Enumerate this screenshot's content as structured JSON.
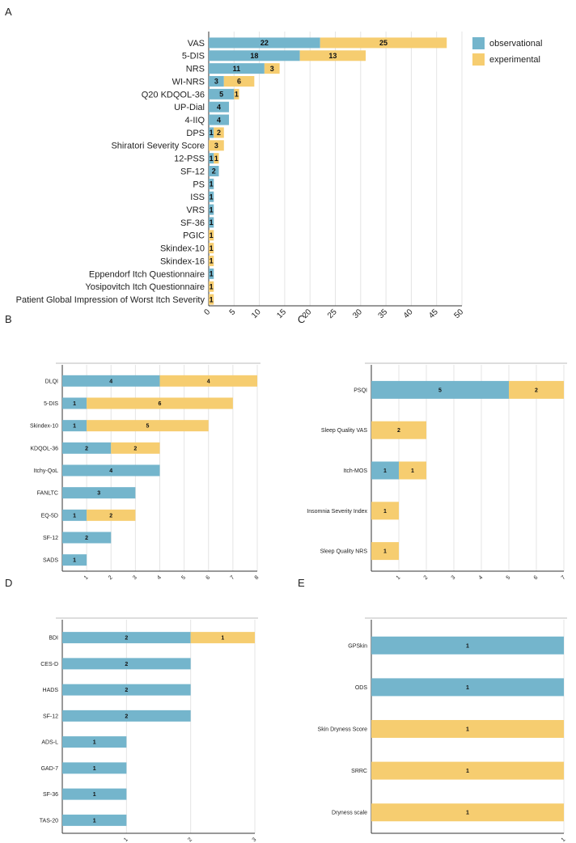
{
  "colors": {
    "observational": "#74b5cc",
    "experimental": "#f6cd70",
    "grid": "#e4e4e4",
    "axis": "#333333"
  },
  "chart_data": [
    {
      "panel": "A",
      "type": "bar",
      "orientation": "horizontal",
      "stacked": true,
      "categories": [
        "VAS",
        "5-DIS",
        "NRS",
        "WI-NRS",
        "Q20 KDQOL-36",
        "UP-Dial",
        "4-IIQ",
        "DPS",
        "Shiratori Severity Score",
        "12-PSS",
        "SF-12",
        "PS",
        "ISS",
        "VRS",
        "SF-36",
        "PGIC",
        "Skindex-10",
        "Skindex-16",
        "Eppendorf Itch Questionnaire",
        "Yosipovitch Itch Questionnaire",
        "Patient Global Impression of Worst Itch Severity"
      ],
      "series": [
        {
          "name": "observational",
          "values": [
            22,
            18,
            11,
            3,
            5,
            4,
            4,
            1,
            0,
            1,
            2,
            1,
            1,
            1,
            1,
            0,
            0,
            0,
            1,
            0,
            0
          ]
        },
        {
          "name": "experimental",
          "values": [
            25,
            13,
            3,
            6,
            1,
            0,
            0,
            2,
            3,
            1,
            0,
            0,
            0,
            0,
            0,
            1,
            1,
            1,
            0,
            1,
            1
          ]
        }
      ],
      "xlim": [
        0,
        50
      ],
      "xticks": [
        "0",
        "5",
        "10",
        "15",
        "20",
        "25",
        "30",
        "35",
        "40",
        "45",
        "50"
      ],
      "legend": {
        "position": "top-right",
        "entries": [
          "observational",
          "experimental"
        ]
      }
    },
    {
      "panel": "B",
      "type": "bar",
      "orientation": "horizontal",
      "stacked": true,
      "categories": [
        "DLQI",
        "5-DIS",
        "Skindex-10",
        "KDQOL-36",
        "Itchy-QoL",
        "FANLTC",
        "EQ-5D",
        "SF-12",
        "SADS"
      ],
      "series": [
        {
          "name": "observational",
          "values": [
            4,
            1,
            1,
            2,
            4,
            3,
            1,
            2,
            1
          ]
        },
        {
          "name": "experimental",
          "values": [
            4,
            6,
            5,
            2,
            0,
            0,
            2,
            0,
            0
          ]
        }
      ],
      "xlim": [
        0,
        8
      ],
      "xticks": [
        "1",
        "2",
        "3",
        "4",
        "5",
        "6",
        "7",
        "8"
      ]
    },
    {
      "panel": "C",
      "type": "bar",
      "orientation": "horizontal",
      "stacked": true,
      "categories": [
        "PSQI",
        "Sleep Quality VAS",
        "Itch-MOS",
        "Insomnia Severity Index",
        "Sleep Quality NRS"
      ],
      "series": [
        {
          "name": "observational",
          "values": [
            5,
            0,
            1,
            0,
            0
          ]
        },
        {
          "name": "experimental",
          "values": [
            2,
            2,
            1,
            1,
            1
          ]
        }
      ],
      "xlim": [
        0,
        7
      ],
      "xticks": [
        "1",
        "2",
        "3",
        "4",
        "5",
        "6",
        "7"
      ]
    },
    {
      "panel": "D",
      "type": "bar",
      "orientation": "horizontal",
      "stacked": true,
      "categories": [
        "BDI",
        "CES-D",
        "HADS",
        "SF-12",
        "ADS-L",
        "GAD-7",
        "SF-36",
        "TAS-20"
      ],
      "series": [
        {
          "name": "observational",
          "values": [
            2,
            2,
            2,
            2,
            1,
            1,
            1,
            1
          ]
        },
        {
          "name": "experimental",
          "values": [
            1,
            0,
            0,
            0,
            0,
            0,
            0,
            0
          ]
        }
      ],
      "xlim": [
        0,
        3
      ],
      "xticks": [
        "1",
        "2",
        "3"
      ]
    },
    {
      "panel": "E",
      "type": "bar",
      "orientation": "horizontal",
      "stacked": true,
      "categories": [
        "GPSkin",
        "ODS",
        "Skin Dryness Score",
        "SRRC",
        "Dryness scale"
      ],
      "series": [
        {
          "name": "observational",
          "values": [
            1,
            1,
            0,
            0,
            0
          ]
        },
        {
          "name": "experimental",
          "values": [
            0,
            0,
            1,
            1,
            1
          ]
        }
      ],
      "xlim": [
        0,
        1
      ],
      "xticks": [
        "1"
      ]
    }
  ]
}
